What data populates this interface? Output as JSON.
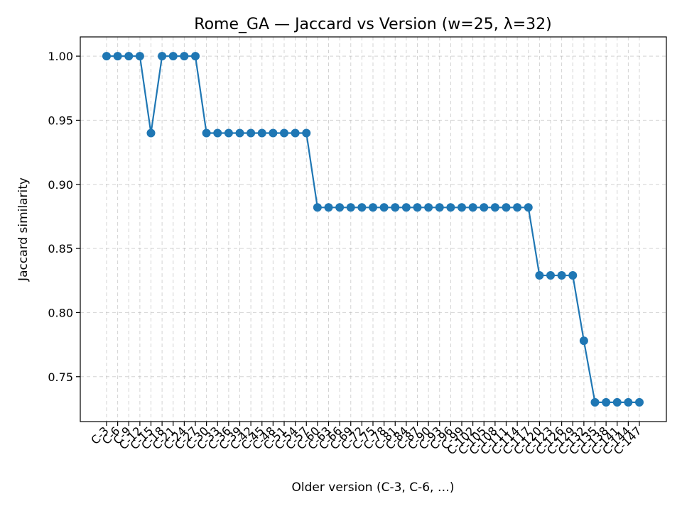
{
  "chart_data": {
    "type": "line",
    "title": "Rome_GA — Jaccard vs Version (w=25, λ=32)",
    "xlabel": "Older version (C-3, C-6, …)",
    "ylabel": "Jaccard similarity",
    "ylim": [
      0.715,
      1.015
    ],
    "yticks": [
      0.75,
      0.8,
      0.85,
      0.9,
      0.95,
      1.0
    ],
    "ytick_labels": [
      "0.75",
      "0.80",
      "0.85",
      "0.90",
      "0.95",
      "1.00"
    ],
    "grid": true,
    "color": "#1f77b4",
    "categories": [
      "C-3",
      "C-6",
      "C-9",
      "C-12",
      "C-15",
      "C-18",
      "C-21",
      "C-24",
      "C-27",
      "C-30",
      "C-33",
      "C-36",
      "C-39",
      "C-42",
      "C-45",
      "C-48",
      "C-51",
      "C-54",
      "C-57",
      "C-60",
      "C-63",
      "C-66",
      "C-69",
      "C-72",
      "C-75",
      "C-78",
      "C-81",
      "C-84",
      "C-87",
      "C-90",
      "C-93",
      "C-96",
      "C-99",
      "C-102",
      "C-105",
      "C-108",
      "C-111",
      "C-114",
      "C-117",
      "C-120",
      "C-123",
      "C-126",
      "C-129",
      "C-132",
      "C-135",
      "C-138",
      "C-141",
      "C-144",
      "C-147"
    ],
    "values": [
      1.0,
      1.0,
      1.0,
      1.0,
      0.94,
      1.0,
      1.0,
      1.0,
      1.0,
      0.94,
      0.94,
      0.94,
      0.94,
      0.94,
      0.94,
      0.94,
      0.94,
      0.94,
      0.94,
      0.882,
      0.882,
      0.882,
      0.882,
      0.882,
      0.882,
      0.882,
      0.882,
      0.882,
      0.882,
      0.882,
      0.882,
      0.882,
      0.882,
      0.882,
      0.882,
      0.882,
      0.882,
      0.882,
      0.882,
      0.829,
      0.829,
      0.829,
      0.829,
      0.778,
      0.73,
      0.73,
      0.73,
      0.73,
      0.73
    ]
  }
}
